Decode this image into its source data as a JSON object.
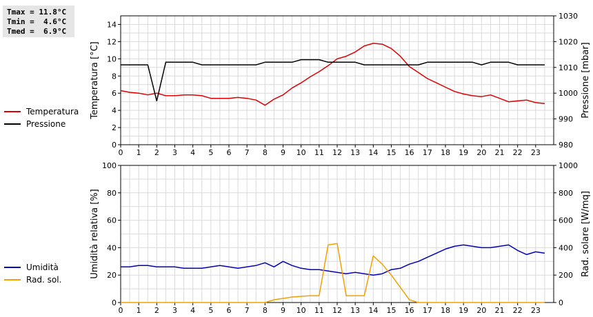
{
  "stats": {
    "tmax": "Tmax = 11.8°C",
    "tmin": "Tmin =  4.6°C",
    "tmed": "Tmed =  6.9°C"
  },
  "colors": {
    "temperature": "#dd0000",
    "pressure": "#000000",
    "humidity": "#0000bb",
    "radiation": "#f5a000",
    "grid": "#d9d9d9"
  },
  "chart_data": [
    {
      "type": "line",
      "x_ticks": [
        "0",
        "1",
        "2",
        "3",
        "4",
        "5",
        "6",
        "7",
        "8",
        "9",
        "10",
        "11",
        "12",
        "13",
        "14",
        "15",
        "16",
        "17",
        "18",
        "19",
        "20",
        "21",
        "22",
        "23"
      ],
      "xlim": [
        0,
        24
      ],
      "ylabel": "Temperatura [°C]",
      "ylim": [
        0,
        15
      ],
      "y_ticks": [
        "0",
        "2",
        "4",
        "6",
        "8",
        "10",
        "12",
        "14"
      ],
      "ylabel_right": "Pressione [mbar]",
      "ylim_right": [
        980,
        1030
      ],
      "y_ticks_right": [
        "980",
        "990",
        "1000",
        "1010",
        "1020",
        "1030"
      ],
      "legend": [
        "Temperatura",
        "Pressione"
      ],
      "grid": true,
      "series": [
        {
          "name": "Temperatura",
          "axis": "left",
          "x": [
            0,
            0.5,
            1,
            1.5,
            2,
            2.5,
            3,
            3.5,
            4,
            4.5,
            5,
            5.5,
            6,
            6.5,
            7,
            7.5,
            8,
            8.5,
            9,
            9.5,
            10,
            10.5,
            11,
            11.5,
            12,
            12.5,
            13,
            13.5,
            14,
            14.5,
            15,
            15.5,
            16,
            16.5,
            17,
            17.5,
            18,
            18.5,
            19,
            19.5,
            20,
            20.5,
            21,
            21.5,
            22,
            22.5,
            23,
            23.5
          ],
          "values": [
            6.3,
            6.1,
            6.0,
            5.8,
            6.0,
            5.7,
            5.7,
            5.8,
            5.8,
            5.7,
            5.4,
            5.4,
            5.4,
            5.5,
            5.4,
            5.2,
            4.6,
            5.3,
            5.8,
            6.6,
            7.2,
            7.9,
            8.5,
            9.2,
            10.0,
            10.3,
            10.8,
            11.5,
            11.8,
            11.7,
            11.2,
            10.3,
            9.1,
            8.4,
            7.7,
            7.2,
            6.7,
            6.2,
            5.9,
            5.7,
            5.6,
            5.8,
            5.4,
            5.0,
            5.1,
            5.2,
            4.9,
            4.8
          ]
        },
        {
          "name": "Pressione",
          "axis": "right",
          "x": [
            0,
            0.5,
            1,
            1.5,
            2,
            2.5,
            3,
            3.5,
            4,
            4.5,
            5,
            5.5,
            6,
            6.5,
            7,
            7.5,
            8,
            8.5,
            9,
            9.5,
            10,
            10.5,
            11,
            11.5,
            12,
            12.5,
            13,
            13.5,
            14,
            14.5,
            15,
            15.5,
            16,
            16.5,
            17,
            17.5,
            18,
            18.5,
            19,
            19.5,
            20,
            20.5,
            21,
            21.5,
            22,
            22.5,
            23,
            23.5
          ],
          "values": [
            1011,
            1011,
            1011,
            1011,
            997,
            1012,
            1012,
            1012,
            1012,
            1011,
            1011,
            1011,
            1011,
            1011,
            1011,
            1011,
            1012,
            1012,
            1012,
            1012,
            1013,
            1013,
            1013,
            1012,
            1012,
            1012,
            1012,
            1011,
            1011,
            1011,
            1011,
            1011,
            1011,
            1011,
            1012,
            1012,
            1012,
            1012,
            1012,
            1012,
            1011,
            1012,
            1012,
            1012,
            1011,
            1011,
            1011,
            1011
          ]
        }
      ]
    },
    {
      "type": "line",
      "x_ticks": [
        "0",
        "1",
        "2",
        "3",
        "4",
        "5",
        "6",
        "7",
        "8",
        "9",
        "10",
        "11",
        "12",
        "13",
        "14",
        "15",
        "16",
        "17",
        "18",
        "19",
        "20",
        "21",
        "22",
        "23"
      ],
      "xlim": [
        0,
        24
      ],
      "ylabel": "Umidità relativa [%]",
      "ylim": [
        0,
        100
      ],
      "y_ticks": [
        "0",
        "20",
        "40",
        "60",
        "80",
        "100"
      ],
      "ylabel_right": "Rad. solare [W/mq]",
      "ylim_right": [
        0,
        1000
      ],
      "y_ticks_right": [
        "0",
        "200",
        "400",
        "600",
        "800",
        "1000"
      ],
      "legend": [
        "Umidità",
        "Rad. sol."
      ],
      "grid": true,
      "series": [
        {
          "name": "Umidità",
          "axis": "left",
          "x": [
            0,
            0.5,
            1,
            1.5,
            2,
            2.5,
            3,
            3.5,
            4,
            4.5,
            5,
            5.5,
            6,
            6.5,
            7,
            7.5,
            8,
            8.5,
            9,
            9.5,
            10,
            10.5,
            11,
            11.5,
            12,
            12.5,
            13,
            13.5,
            14,
            14.5,
            15,
            15.5,
            16,
            16.5,
            17,
            17.5,
            18,
            18.5,
            19,
            19.5,
            20,
            20.5,
            21,
            21.5,
            22,
            22.5,
            23,
            23.5
          ],
          "values": [
            26,
            26,
            27,
            27,
            26,
            26,
            26,
            25,
            25,
            25,
            26,
            27,
            26,
            25,
            26,
            27,
            29,
            26,
            30,
            27,
            25,
            24,
            24,
            23,
            22,
            21,
            22,
            21,
            20,
            21,
            24,
            25,
            28,
            30,
            33,
            36,
            39,
            41,
            42,
            41,
            40,
            40,
            41,
            42,
            38,
            35,
            37,
            36
          ]
        },
        {
          "name": "Rad. sol.",
          "axis": "right",
          "x": [
            0,
            8,
            8.5,
            9,
            9.5,
            10,
            10.5,
            11,
            11.5,
            12,
            12.5,
            13,
            13.5,
            14,
            14.5,
            15,
            15.5,
            16,
            16.5,
            23.5
          ],
          "values": [
            0,
            0,
            20,
            30,
            40,
            45,
            50,
            50,
            420,
            430,
            50,
            50,
            50,
            340,
            280,
            200,
            110,
            20,
            0,
            0
          ]
        }
      ]
    }
  ]
}
